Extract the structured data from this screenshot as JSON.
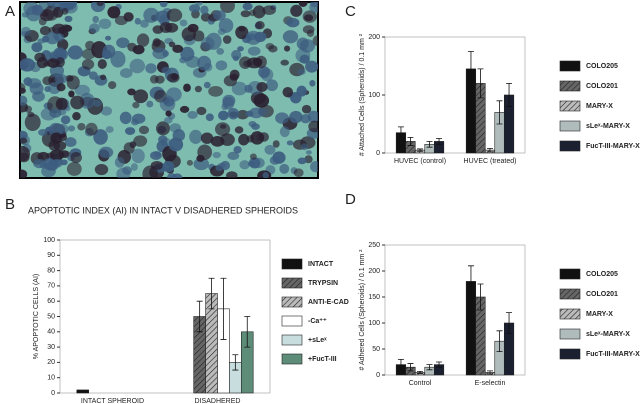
{
  "panel_labels": [
    "A",
    "B",
    "C",
    "D"
  ],
  "chart_data": [
    {
      "type": "bar",
      "title": "APOPTOTIC INDEX (AI) IN INTACT V DISADHERED SPHEROIDS",
      "y_label": "% APOPTOTIC CELLS (AI)",
      "categories": [
        "INTACT SPHEROID",
        "DISADHERED"
      ],
      "ylim": [
        0,
        100
      ],
      "yticks": [
        0,
        10,
        20,
        30,
        40,
        50,
        60,
        70,
        80,
        90,
        100
      ],
      "series": [
        {
          "name": "INTACT",
          "color": "#111111",
          "hatch": false,
          "values": [
            2,
            null
          ],
          "errors": [
            null,
            null
          ]
        },
        {
          "name": "TRYPSIN",
          "color": "#666666",
          "hatch": true,
          "values": [
            null,
            50
          ],
          "errors": [
            null,
            10
          ]
        },
        {
          "name": "ANTI-E-CAD",
          "color": "#bbbbbb",
          "hatch": true,
          "values": [
            null,
            65
          ],
          "errors": [
            null,
            10
          ]
        },
        {
          "name": "-Ca⁺⁺",
          "color": "#ffffff",
          "hatch": false,
          "values": [
            null,
            55
          ],
          "errors": [
            null,
            20
          ]
        },
        {
          "name": "+sLeˣ",
          "color": "#c8dede",
          "hatch": false,
          "values": [
            null,
            20
          ],
          "errors": [
            null,
            5
          ]
        },
        {
          "name": "+FucT-III",
          "color": "#5d8c78",
          "hatch": false,
          "values": [
            null,
            40
          ],
          "errors": [
            null,
            10
          ]
        }
      ]
    },
    {
      "type": "bar",
      "y_label": "# Attached Cells (Spheroids) / 0.1 mm ²",
      "categories": [
        "HUVEC (control)",
        "HUVEC (treated)"
      ],
      "ylim": [
        0,
        200
      ],
      "yticks": [
        0,
        100,
        200
      ],
      "series": [
        {
          "name": "COLO205",
          "color": "#111111",
          "hatch": false,
          "values": [
            35,
            145
          ],
          "errors": [
            10,
            30
          ]
        },
        {
          "name": "COLO201",
          "color": "#666666",
          "hatch": true,
          "values": [
            20,
            120
          ],
          "errors": [
            7,
            25
          ]
        },
        {
          "name": "MARY-X",
          "color": "#bbbbbb",
          "hatch": true,
          "values": [
            5,
            5
          ],
          "errors": [
            2,
            3
          ]
        },
        {
          "name": "sLeˣ-MARY-X",
          "color": "#b0bcbc",
          "hatch": false,
          "values": [
            15,
            70
          ],
          "errors": [
            5,
            20
          ]
        },
        {
          "name": "FucT-III-MARY-X",
          "color": "#1a2030",
          "hatch": false,
          "values": [
            20,
            100
          ],
          "errors": [
            5,
            20
          ]
        }
      ]
    },
    {
      "type": "bar",
      "y_label": "# Adhered Cells (Spheroids) / 0.1 mm ²",
      "categories": [
        "Control",
        "E-selectin"
      ],
      "ylim": [
        0,
        250
      ],
      "yticks": [
        0,
        50,
        100,
        150,
        200,
        250
      ],
      "series": [
        {
          "name": "COLO205",
          "color": "#111111",
          "hatch": false,
          "values": [
            20,
            180
          ],
          "errors": [
            10,
            30
          ]
        },
        {
          "name": "COLO201",
          "color": "#666666",
          "hatch": true,
          "values": [
            15,
            150
          ],
          "errors": [
            7,
            25
          ]
        },
        {
          "name": "MARY-X",
          "color": "#bbbbbb",
          "hatch": true,
          "values": [
            5,
            5
          ],
          "errors": [
            2,
            3
          ]
        },
        {
          "name": "sLeˣ-MARY-X",
          "color": "#b0bcbc",
          "hatch": false,
          "values": [
            15,
            65
          ],
          "errors": [
            5,
            20
          ]
        },
        {
          "name": "FucT-III-MARY-X",
          "color": "#1a2030",
          "hatch": false,
          "values": [
            20,
            100
          ],
          "errors": [
            5,
            20
          ]
        }
      ]
    }
  ]
}
